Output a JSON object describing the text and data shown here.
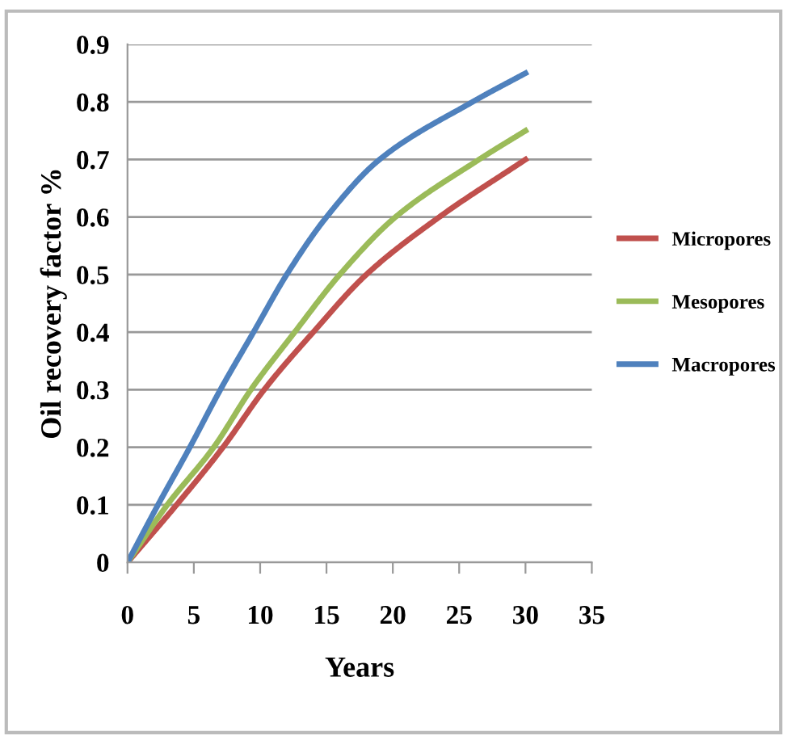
{
  "chart_data": {
    "type": "line",
    "xlabel": "Years",
    "ylabel": "Oil recovery factor %",
    "xlim": [
      0,
      35
    ],
    "xticks": [
      0,
      5,
      10,
      15,
      20,
      25,
      30,
      35
    ],
    "ylim": [
      0,
      0.9
    ],
    "yticks": [
      0,
      0.1,
      0.2,
      0.3,
      0.4,
      0.5,
      0.6,
      0.7,
      0.8,
      0.9
    ],
    "grid": "y",
    "legend": "right",
    "marker": "none",
    "line_style": "solid",
    "series": [
      {
        "name": "Micropores",
        "color": "#c0504d",
        "x": [
          0,
          3.7,
          7.2,
          10.3,
          14,
          18,
          23.5,
          30
        ],
        "values": [
          0,
          0.1,
          0.2,
          0.3,
          0.4,
          0.5,
          0.6,
          0.7
        ]
      },
      {
        "name": "Mesopores",
        "color": "#9bbb59",
        "x": [
          0,
          3,
          6.5,
          9.3,
          12.6,
          16,
          20.2,
          26.5,
          30
        ],
        "values": [
          0,
          0.1,
          0.2,
          0.3,
          0.4,
          0.5,
          0.6,
          0.7,
          0.75
        ]
      },
      {
        "name": "Macropores",
        "color": "#4f81bd",
        "x": [
          0,
          2.3,
          4.7,
          7,
          9.5,
          12,
          15,
          19,
          26,
          30
        ],
        "values": [
          0,
          0.1,
          0.2,
          0.3,
          0.4,
          0.5,
          0.6,
          0.7,
          0.8,
          0.85
        ]
      }
    ]
  }
}
